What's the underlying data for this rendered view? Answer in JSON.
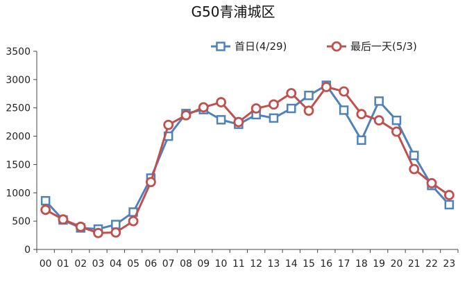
{
  "chart_data": {
    "type": "line",
    "title": "G50青浦城区",
    "xlabel": "",
    "ylabel": "",
    "ylim": [
      0,
      3500
    ],
    "yticks": [
      0,
      500,
      1000,
      1500,
      2000,
      2500,
      3000,
      3500
    ],
    "grid": false,
    "legend_position": "top-right",
    "categories": [
      "00",
      "01",
      "02",
      "03",
      "04",
      "05",
      "06",
      "07",
      "08",
      "09",
      "10",
      "11",
      "12",
      "13",
      "14",
      "15",
      "16",
      "17",
      "18",
      "19",
      "20",
      "21",
      "22",
      "23"
    ],
    "series": [
      {
        "name": "首日(4/29)",
        "marker": "square",
        "color": "#4f81bd",
        "values": [
          860,
          520,
          380,
          360,
          440,
          660,
          1260,
          2000,
          2400,
          2470,
          2290,
          2210,
          2380,
          2320,
          2490,
          2720,
          2900,
          2460,
          1930,
          2620,
          2280,
          1660,
          1130,
          790
        ]
      },
      {
        "name": "最后一天(5/3)",
        "marker": "circle",
        "color": "#c0504d",
        "values": [
          700,
          530,
          400,
          290,
          300,
          500,
          1190,
          2200,
          2370,
          2510,
          2600,
          2250,
          2490,
          2560,
          2760,
          2450,
          2870,
          2790,
          2390,
          2280,
          2080,
          1420,
          1170,
          960
        ]
      }
    ]
  }
}
